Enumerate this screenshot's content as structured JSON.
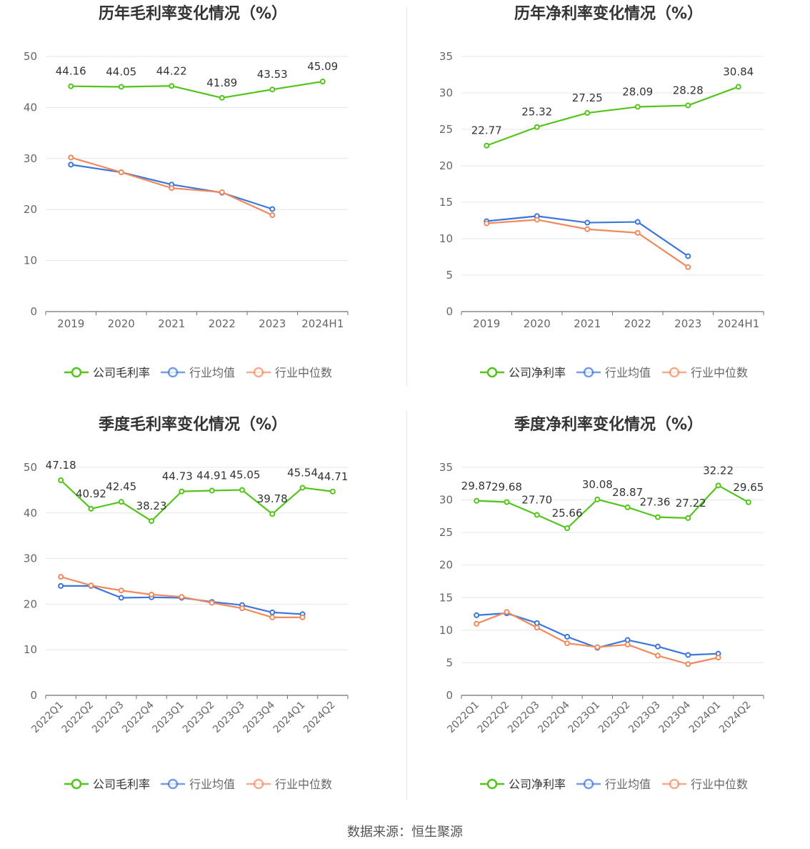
{
  "source_label": "数据来源：恒生聚源",
  "colors": {
    "company": "#52c41a",
    "avg": "#3b76db",
    "median": "#f08a5d",
    "grid": "#e6e6e6",
    "axis": "#6e7079",
    "tick": "#666666",
    "label": "#333333",
    "title": "#333333"
  },
  "chart_data": [
    {
      "type": "line",
      "title": "历年毛利率变化情况（%）",
      "categories": [
        "2019",
        "2020",
        "2021",
        "2022",
        "2023",
        "2024H1"
      ],
      "ylim": [
        0,
        50
      ],
      "yticks": [
        0,
        10,
        20,
        30,
        40,
        50
      ],
      "rotate_x_labels": false,
      "grid": true,
      "legend": "bottom",
      "series": [
        {
          "name": "公司毛利率",
          "color_key": "company",
          "values": [
            44.16,
            44.05,
            44.22,
            41.89,
            43.53,
            45.09
          ],
          "labels": [
            "44.16",
            "44.05",
            "44.22",
            "41.89",
            "43.53",
            "45.09"
          ]
        },
        {
          "name": "行业均值",
          "color_key": "avg",
          "values": [
            28.8,
            27.3,
            24.9,
            23.3,
            20.1,
            null
          ]
        },
        {
          "name": "行业中位数",
          "color_key": "median",
          "values": [
            30.2,
            27.3,
            24.2,
            23.4,
            18.9,
            null
          ]
        }
      ]
    },
    {
      "type": "line",
      "title": "历年净利率变化情况（%）",
      "categories": [
        "2019",
        "2020",
        "2021",
        "2022",
        "2023",
        "2024H1"
      ],
      "ylim": [
        0,
        35
      ],
      "yticks": [
        0,
        5,
        10,
        15,
        20,
        25,
        30,
        35
      ],
      "rotate_x_labels": false,
      "grid": true,
      "legend": "bottom",
      "series": [
        {
          "name": "公司净利率",
          "color_key": "company",
          "values": [
            22.77,
            25.32,
            27.25,
            28.09,
            28.28,
            30.84
          ],
          "labels": [
            "22.77",
            "25.32",
            "27.25",
            "28.09",
            "28.28",
            "30.84"
          ]
        },
        {
          "name": "行业均值",
          "color_key": "avg",
          "values": [
            12.4,
            13.1,
            12.2,
            12.3,
            7.6,
            null
          ]
        },
        {
          "name": "行业中位数",
          "color_key": "median",
          "values": [
            12.1,
            12.6,
            11.3,
            10.8,
            6.1,
            null
          ]
        }
      ]
    },
    {
      "type": "line",
      "title": "季度毛利率变化情况（%）",
      "categories": [
        "2022Q1",
        "2022Q2",
        "2022Q3",
        "2022Q4",
        "2023Q1",
        "2023Q2",
        "2023Q3",
        "2023Q4",
        "2024Q1",
        "2024Q2"
      ],
      "ylim": [
        0,
        50
      ],
      "yticks": [
        0,
        10,
        20,
        30,
        40,
        50
      ],
      "rotate_x_labels": true,
      "grid": true,
      "legend": "bottom",
      "series": [
        {
          "name": "公司毛利率",
          "color_key": "company",
          "values": [
            47.18,
            40.92,
            42.45,
            38.23,
            44.73,
            44.91,
            45.05,
            39.78,
            45.54,
            44.71
          ],
          "labels": [
            "47.18",
            "40.92",
            "42.45",
            "38.23",
            "44.73",
            "44.91",
            "45.05",
            "39.78",
            "45.54",
            "44.71"
          ]
        },
        {
          "name": "行业均值",
          "color_key": "avg",
          "values": [
            24.0,
            24.0,
            21.4,
            21.5,
            21.4,
            20.5,
            19.8,
            18.2,
            17.8,
            null
          ]
        },
        {
          "name": "行业中位数",
          "color_key": "median",
          "values": [
            26.0,
            24.1,
            23.0,
            22.1,
            21.6,
            20.3,
            19.1,
            17.1,
            17.1,
            null
          ]
        }
      ]
    },
    {
      "type": "line",
      "title": "季度净利率变化情况（%）",
      "categories": [
        "2022Q1",
        "2022Q2",
        "2022Q3",
        "2022Q4",
        "2023Q1",
        "2023Q2",
        "2023Q3",
        "2023Q4",
        "2024Q1",
        "2024Q2"
      ],
      "ylim": [
        0,
        35
      ],
      "yticks": [
        0,
        5,
        10,
        15,
        20,
        25,
        30,
        35
      ],
      "rotate_x_labels": true,
      "grid": true,
      "legend": "bottom",
      "series": [
        {
          "name": "公司净利率",
          "color_key": "company",
          "values": [
            29.87,
            29.68,
            27.7,
            25.66,
            30.08,
            28.87,
            27.36,
            27.22,
            32.22,
            29.65
          ],
          "labels": [
            "29.87",
            "29.68",
            "27.70",
            "25.66",
            "30.08",
            "28.87",
            "27.36",
            "27.22",
            "32.22",
            "29.65"
          ]
        },
        {
          "name": "行业均值",
          "color_key": "avg",
          "values": [
            12.3,
            12.6,
            11.1,
            9.0,
            7.3,
            8.5,
            7.5,
            6.2,
            6.4,
            null
          ]
        },
        {
          "name": "行业中位数",
          "color_key": "median",
          "values": [
            11.0,
            12.8,
            10.4,
            8.0,
            7.4,
            7.8,
            6.1,
            4.8,
            5.8,
            null
          ]
        }
      ]
    }
  ]
}
